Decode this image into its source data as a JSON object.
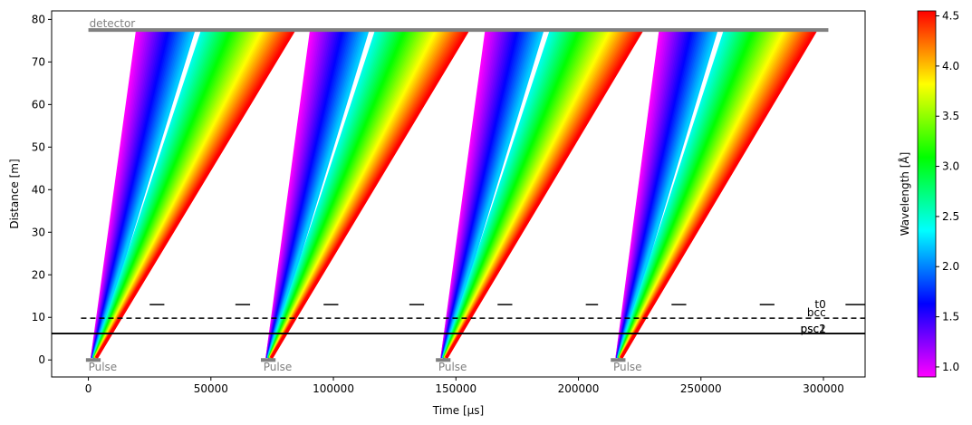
{
  "chart_data": {
    "type": "line",
    "xlabel": "Time [µs]",
    "ylabel": "Distance [m]",
    "xlim": [
      -15000,
      317000
    ],
    "ylim": [
      -4,
      82
    ],
    "xticks": [
      0,
      50000,
      100000,
      150000,
      200000,
      250000,
      300000
    ],
    "xtick_labels": [
      "0",
      "50000",
      "100000",
      "150000",
      "200000",
      "250000",
      "300000"
    ],
    "yticks": [
      0,
      10,
      20,
      30,
      40,
      50,
      60,
      70,
      80
    ],
    "ytick_labels": [
      "0",
      "10",
      "20",
      "30",
      "40",
      "50",
      "60",
      "70",
      "80"
    ],
    "colorbar": {
      "label": "Wavelength [Å]",
      "min": 0.9,
      "max": 4.55,
      "ticks": [
        1.0,
        1.5,
        2.0,
        2.5,
        3.0,
        3.5,
        4.0,
        4.5
      ],
      "tick_labels": [
        "1.0",
        "1.5",
        "2.0",
        "2.5",
        "3.0",
        "3.5",
        "4.0",
        "4.5"
      ],
      "colormap": [
        "#ff00ff",
        "#8000ff",
        "#0000ff",
        "#0080ff",
        "#00ffff",
        "#00ff80",
        "#00ff00",
        "#80ff00",
        "#ffff00",
        "#ff8000",
        "#ff0000"
      ]
    },
    "pulses": [
      {
        "label": "Pulse",
        "t_start": 0,
        "t_end": 3000
      },
      {
        "label": "Pulse",
        "t_start": 71400,
        "t_end": 74400
      },
      {
        "label": "Pulse",
        "t_start": 142800,
        "t_end": 145800
      },
      {
        "label": "Pulse",
        "t_start": 214200,
        "t_end": 217200
      }
    ],
    "detector": {
      "label": "detector",
      "distance": 77.5,
      "t_start": 0,
      "t_end": 302000
    },
    "choppers": [
      {
        "label": "t0",
        "distance": 13,
        "open_windows": [
          [
            0,
            25000
          ],
          [
            31000,
            60000
          ],
          [
            66000,
            96000
          ],
          [
            102000,
            131000
          ],
          [
            137000,
            167000
          ],
          [
            173000,
            203000
          ],
          [
            208000,
            238000
          ],
          [
            244000,
            274000
          ],
          [
            280000,
            309000
          ]
        ]
      },
      {
        "label": "bcc",
        "distance": 9.8,
        "style": "dashed"
      },
      {
        "label": "psc2",
        "distance": 6.2,
        "style": "solid"
      },
      {
        "label": "psc1",
        "distance": 6.2,
        "style": "solid"
      }
    ],
    "frames": [
      {
        "t_detector_min": 20000,
        "t_detector_max": 84000,
        "gap_at": [
          0.37,
          0.41
        ]
      },
      {
        "t_detector_min": 91000,
        "t_detector_max": 155000,
        "gap_at": [
          0.37,
          0.41
        ]
      },
      {
        "t_detector_min": 162500,
        "t_detector_max": 226000,
        "gap_at": [
          0.37,
          0.41
        ]
      },
      {
        "t_detector_min": 233500,
        "t_detector_max": 297000,
        "gap_at": [
          0.37,
          0.41
        ]
      }
    ]
  }
}
